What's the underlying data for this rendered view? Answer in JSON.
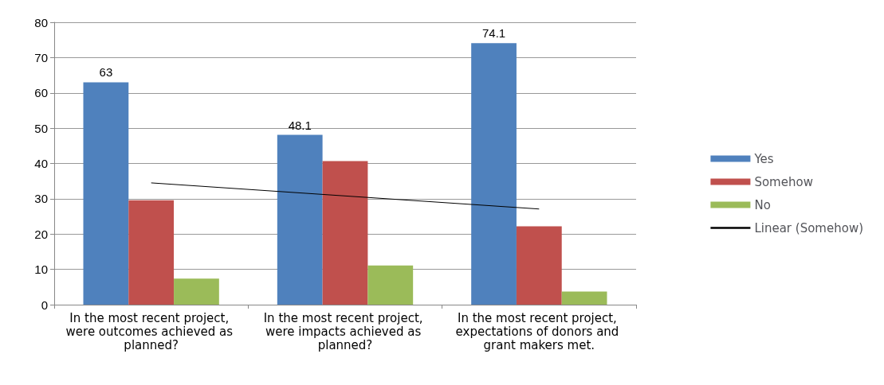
{
  "chart_data": {
    "type": "bar",
    "categories": [
      "In the most recent project, were outcomes achieved as planned?",
      "In the most recent project, were impacts achieved as planned?",
      "In the most recent project, expectations of donors and grant makers met."
    ],
    "series": [
      {
        "name": "Yes",
        "color": "#4f81bd",
        "values": [
          63,
          48.1,
          74.1
        ],
        "value_labels": [
          "63",
          "48.1",
          "74.1"
        ]
      },
      {
        "name": "Somehow",
        "color": "#c0504d",
        "values": [
          29.6,
          40.7,
          22.2
        ]
      },
      {
        "name": "No",
        "color": "#9bbb59",
        "values": [
          7.4,
          11.1,
          3.7
        ]
      },
      {
        "name": "Linear (Somehow)",
        "type": "line",
        "color": "#000000",
        "values": [
          34.5,
          30.8,
          27.1
        ],
        "marker": "none",
        "line_style": "solid"
      }
    ],
    "ylim": [
      0,
      80
    ],
    "yticks": [
      0,
      10,
      20,
      30,
      40,
      50,
      60,
      70,
      80
    ],
    "grid": "y",
    "legend": "right"
  }
}
